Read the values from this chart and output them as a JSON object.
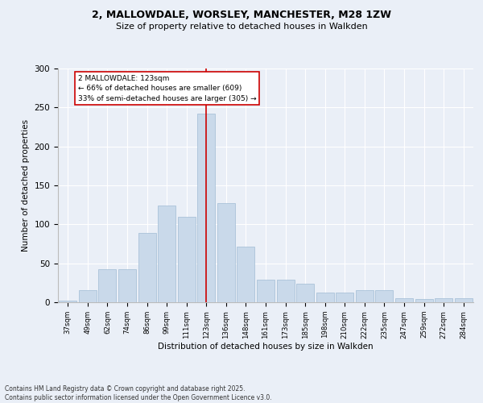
{
  "title_line1": "2, MALLOWDALE, WORSLEY, MANCHESTER, M28 1ZW",
  "title_line2": "Size of property relative to detached houses in Walkden",
  "xlabel": "Distribution of detached houses by size in Walkden",
  "ylabel": "Number of detached properties",
  "bar_labels": [
    "37sqm",
    "49sqm",
    "62sqm",
    "74sqm",
    "86sqm",
    "99sqm",
    "111sqm",
    "123sqm",
    "136sqm",
    "148sqm",
    "161sqm",
    "173sqm",
    "185sqm",
    "198sqm",
    "210sqm",
    "222sqm",
    "235sqm",
    "247sqm",
    "259sqm",
    "272sqm",
    "284sqm"
  ],
  "bar_values": [
    2,
    16,
    42,
    42,
    89,
    124,
    110,
    242,
    127,
    71,
    29,
    29,
    24,
    12,
    12,
    16,
    16,
    5,
    4,
    5,
    5
  ],
  "bar_color": "#c9d9ea",
  "bar_edge_color": "#a0bcd4",
  "highlight_index": 7,
  "highlight_line_color": "#cc0000",
  "annotation_text": "2 MALLOWDALE: 123sqm\n← 66% of detached houses are smaller (609)\n33% of semi-detached houses are larger (305) →",
  "annotation_box_color": "#cc0000",
  "ylim_max": 300,
  "background_color": "#eaeff7",
  "footer_text": "Contains HM Land Registry data © Crown copyright and database right 2025.\nContains public sector information licensed under the Open Government Licence v3.0."
}
